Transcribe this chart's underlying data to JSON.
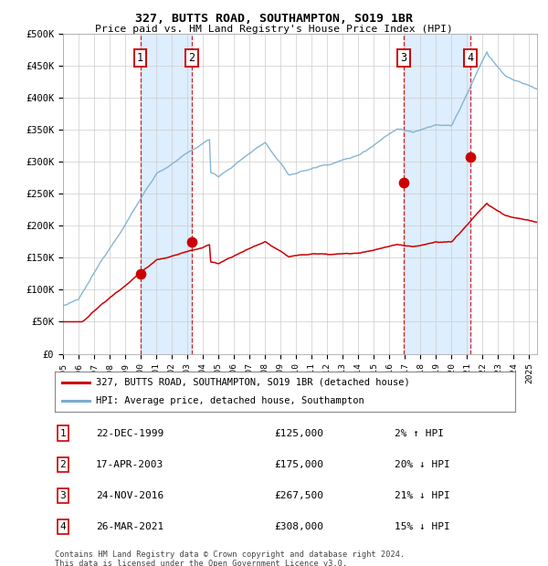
{
  "title1": "327, BUTTS ROAD, SOUTHAMPTON, SO19 1BR",
  "title2": "Price paid vs. HM Land Registry's House Price Index (HPI)",
  "ylim": [
    0,
    500000
  ],
  "yticks": [
    0,
    50000,
    100000,
    150000,
    200000,
    250000,
    300000,
    350000,
    400000,
    450000,
    500000
  ],
  "ytick_labels": [
    "£0",
    "£50K",
    "£100K",
    "£150K",
    "£200K",
    "£250K",
    "£300K",
    "£350K",
    "£400K",
    "£450K",
    "£500K"
  ],
  "xlim_start": 1995.0,
  "xlim_end": 2025.5,
  "transactions": [
    {
      "num": 1,
      "date_label": "22-DEC-1999",
      "year": 1999.97,
      "price": 125000,
      "pct": "2%",
      "dir": "↑"
    },
    {
      "num": 2,
      "date_label": "17-APR-2003",
      "year": 2003.29,
      "price": 175000,
      "pct": "20%",
      "dir": "↓"
    },
    {
      "num": 3,
      "date_label": "24-NOV-2016",
      "year": 2016.9,
      "price": 267500,
      "pct": "21%",
      "dir": "↓"
    },
    {
      "num": 4,
      "date_label": "26-MAR-2021",
      "year": 2021.23,
      "price": 308000,
      "pct": "15%",
      "dir": "↓"
    }
  ],
  "red_line_color": "#cc0000",
  "blue_line_color": "#7aadcf",
  "shaded_color": "#ddeeff",
  "background_color": "#ffffff",
  "grid_color": "#cccccc",
  "footnote": "Contains HM Land Registry data © Crown copyright and database right 2024.\nThis data is licensed under the Open Government Licence v3.0.",
  "legend_line1": "327, BUTTS ROAD, SOUTHAMPTON, SO19 1BR (detached house)",
  "legend_line2": "HPI: Average price, detached house, Southampton"
}
